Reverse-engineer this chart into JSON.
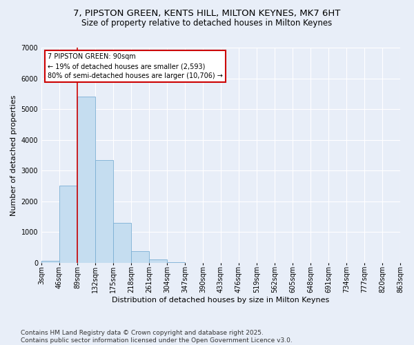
{
  "title_line1": "7, PIPSTON GREEN, KENTS HILL, MILTON KEYNES, MK7 6HT",
  "title_line2": "Size of property relative to detached houses in Milton Keynes",
  "xlabel": "Distribution of detached houses by size in Milton Keynes",
  "ylabel": "Number of detached properties",
  "bin_labels": [
    "3sqm",
    "46sqm",
    "89sqm",
    "132sqm",
    "175sqm",
    "218sqm",
    "261sqm",
    "304sqm",
    "347sqm",
    "390sqm",
    "433sqm",
    "476sqm",
    "519sqm",
    "562sqm",
    "605sqm",
    "648sqm",
    "691sqm",
    "734sqm",
    "777sqm",
    "820sqm",
    "863sqm"
  ],
  "bar_values": [
    55,
    2500,
    5400,
    3350,
    1300,
    380,
    100,
    10,
    0,
    0,
    0,
    0,
    0,
    0,
    0,
    0,
    0,
    0,
    0,
    0
  ],
  "bar_color": "#c5ddf0",
  "bar_edge_color": "#7bafd4",
  "background_color": "#e8eef8",
  "grid_color": "#ffffff",
  "vline_x_index": 2,
  "vline_color": "#cc0000",
  "annotation_title": "7 PIPSTON GREEN: 90sqm",
  "annotation_line1": "← 19% of detached houses are smaller (2,593)",
  "annotation_line2": "80% of semi-detached houses are larger (10,706) →",
  "annotation_box_color": "#cc0000",
  "ylim": [
    0,
    7000
  ],
  "yticks": [
    0,
    1000,
    2000,
    3000,
    4000,
    5000,
    6000,
    7000
  ],
  "footer_line1": "Contains HM Land Registry data © Crown copyright and database right 2025.",
  "footer_line2": "Contains public sector information licensed under the Open Government Licence v3.0.",
  "title_fontsize": 9.5,
  "subtitle_fontsize": 8.5,
  "axis_label_fontsize": 8,
  "tick_fontsize": 7,
  "annotation_fontsize": 7,
  "footer_fontsize": 6.5
}
